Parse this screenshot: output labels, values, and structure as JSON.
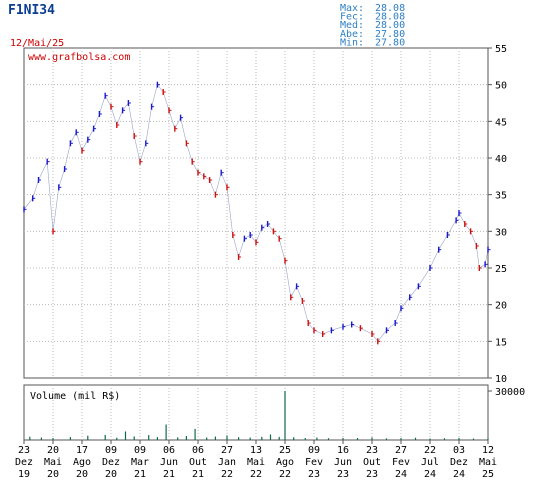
{
  "header": {
    "ticker": "F1NI34",
    "date": "12/Mai/25",
    "stats": [
      {
        "label": "Max:",
        "value": "28.08"
      },
      {
        "label": "Fec:",
        "value": "28.08"
      },
      {
        "label": "Med:",
        "value": "28.00"
      },
      {
        "label": "Abe:",
        "value": "27.80"
      },
      {
        "label": "Min:",
        "value": "27.80"
      }
    ]
  },
  "watermark": "www.grafbolsa.com",
  "colors": {
    "up": "#1a1acc",
    "down": "#cc1111",
    "volume": "#0e6b4a",
    "stat": "#2e7fc2",
    "ticker": "#0b3d91"
  },
  "chart_data": [
    {
      "type": "line",
      "title": "F1NI34",
      "ylabel": "",
      "ylim": [
        10,
        55
      ],
      "yticks": [
        10,
        15,
        20,
        25,
        30,
        35,
        40,
        45,
        50,
        55
      ],
      "grid": true,
      "x_tick_labels": [
        {
          "day": "23",
          "mon": "Dez",
          "yr": "19"
        },
        {
          "day": "20",
          "mon": "Mai",
          "yr": "20"
        },
        {
          "day": "17",
          "mon": "Ago",
          "yr": "20"
        },
        {
          "day": "09",
          "mon": "Dez",
          "yr": "20"
        },
        {
          "day": "09",
          "mon": "Mar",
          "yr": "21"
        },
        {
          "day": "06",
          "mon": "Jun",
          "yr": "21"
        },
        {
          "day": "06",
          "mon": "Out",
          "yr": "21"
        },
        {
          "day": "27",
          "mon": "Jan",
          "yr": "22"
        },
        {
          "day": "13",
          "mon": "Mai",
          "yr": "22"
        },
        {
          "day": "25",
          "mon": "Ago",
          "yr": "22"
        },
        {
          "day": "09",
          "mon": "Fev",
          "yr": "23"
        },
        {
          "day": "16",
          "mon": "Jun",
          "yr": "23"
        },
        {
          "day": "23",
          "mon": "Out",
          "yr": "23"
        },
        {
          "day": "27",
          "mon": "Fev",
          "yr": "24"
        },
        {
          "day": "22",
          "mon": "Jul",
          "yr": "24"
        },
        {
          "day": "03",
          "mon": "Dez",
          "yr": "24"
        },
        {
          "day": "12",
          "mon": "Mai",
          "yr": "25"
        }
      ],
      "series": [
        {
          "values": [
            [
              0.0,
              33.0
            ],
            [
              0.3,
              34.5
            ],
            [
              0.5,
              37.0
            ],
            [
              0.8,
              39.5
            ],
            [
              1.0,
              30.0
            ],
            [
              1.2,
              36.0
            ],
            [
              1.4,
              38.5
            ],
            [
              1.6,
              42.0
            ],
            [
              1.8,
              43.5
            ],
            [
              2.0,
              41.0
            ],
            [
              2.2,
              42.5
            ],
            [
              2.4,
              44.0
            ],
            [
              2.6,
              46.0
            ],
            [
              2.8,
              48.5
            ],
            [
              3.0,
              47.0
            ],
            [
              3.2,
              44.5
            ],
            [
              3.4,
              46.5
            ],
            [
              3.6,
              47.5
            ],
            [
              3.8,
              43.0
            ],
            [
              4.0,
              39.5
            ],
            [
              4.2,
              42.0
            ],
            [
              4.4,
              47.0
            ],
            [
              4.6,
              50.0
            ],
            [
              4.8,
              49.0
            ],
            [
              5.0,
              46.5
            ],
            [
              5.2,
              44.0
            ],
            [
              5.4,
              45.5
            ],
            [
              5.6,
              42.0
            ],
            [
              5.8,
              39.5
            ],
            [
              6.0,
              38.0
            ],
            [
              6.2,
              37.5
            ],
            [
              6.4,
              37.0
            ],
            [
              6.6,
              35.0
            ],
            [
              6.8,
              38.0
            ],
            [
              7.0,
              36.0
            ],
            [
              7.2,
              29.5
            ],
            [
              7.4,
              26.5
            ],
            [
              7.6,
              29.0
            ],
            [
              7.8,
              29.5
            ],
            [
              8.0,
              28.5
            ],
            [
              8.2,
              30.5
            ],
            [
              8.4,
              31.0
            ],
            [
              8.6,
              30.0
            ],
            [
              8.8,
              29.0
            ],
            [
              9.0,
              26.0
            ],
            [
              9.2,
              21.0
            ],
            [
              9.4,
              22.5
            ],
            [
              9.6,
              20.5
            ],
            [
              9.8,
              17.5
            ],
            [
              10.0,
              16.5
            ],
            [
              10.3,
              16.0
            ],
            [
              10.6,
              16.5
            ],
            [
              11.0,
              17.0
            ],
            [
              11.3,
              17.3
            ],
            [
              11.6,
              16.8
            ],
            [
              12.0,
              16.0
            ],
            [
              12.2,
              15.0
            ],
            [
              12.5,
              16.5
            ],
            [
              12.8,
              17.5
            ],
            [
              13.0,
              19.5
            ],
            [
              13.3,
              21.0
            ],
            [
              13.6,
              22.5
            ],
            [
              14.0,
              25.0
            ],
            [
              14.3,
              27.5
            ],
            [
              14.6,
              29.5
            ],
            [
              14.9,
              31.5
            ],
            [
              15.0,
              32.5
            ],
            [
              15.2,
              31.0
            ],
            [
              15.4,
              30.0
            ],
            [
              15.6,
              28.0
            ],
            [
              15.7,
              25.0
            ],
            [
              15.9,
              25.5
            ],
            [
              16.0,
              27.5
            ]
          ]
        }
      ]
    },
    {
      "type": "bar",
      "title": "Volume (mil R$)",
      "ylim": [
        0,
        30000
      ],
      "yticks": [
        30000
      ],
      "values": [
        [
          0.2,
          2000
        ],
        [
          0.6,
          1500
        ],
        [
          1.0,
          1200
        ],
        [
          1.6,
          1800
        ],
        [
          2.2,
          2600
        ],
        [
          2.8,
          3100
        ],
        [
          3.2,
          1400
        ],
        [
          3.5,
          5200
        ],
        [
          3.8,
          2200
        ],
        [
          4.3,
          3000
        ],
        [
          4.6,
          1800
        ],
        [
          4.9,
          9500
        ],
        [
          5.3,
          1600
        ],
        [
          5.6,
          2400
        ],
        [
          5.9,
          6800
        ],
        [
          6.3,
          1500
        ],
        [
          6.6,
          2100
        ],
        [
          7.0,
          2800
        ],
        [
          7.4,
          1700
        ],
        [
          7.8,
          1500
        ],
        [
          8.2,
          1900
        ],
        [
          8.5,
          3400
        ],
        [
          8.8,
          1900
        ],
        [
          9.0,
          30000
        ],
        [
          9.3,
          1700
        ],
        [
          9.7,
          1200
        ],
        [
          10.1,
          1500
        ],
        [
          10.5,
          1100
        ],
        [
          11.0,
          1300
        ],
        [
          11.5,
          1200
        ],
        [
          12.0,
          1600
        ],
        [
          12.5,
          1000
        ],
        [
          13.0,
          1200
        ],
        [
          13.5,
          1400
        ],
        [
          14.0,
          900
        ],
        [
          14.5,
          1100
        ],
        [
          15.0,
          1300
        ],
        [
          15.5,
          900
        ],
        [
          16.0,
          800
        ]
      ]
    }
  ]
}
